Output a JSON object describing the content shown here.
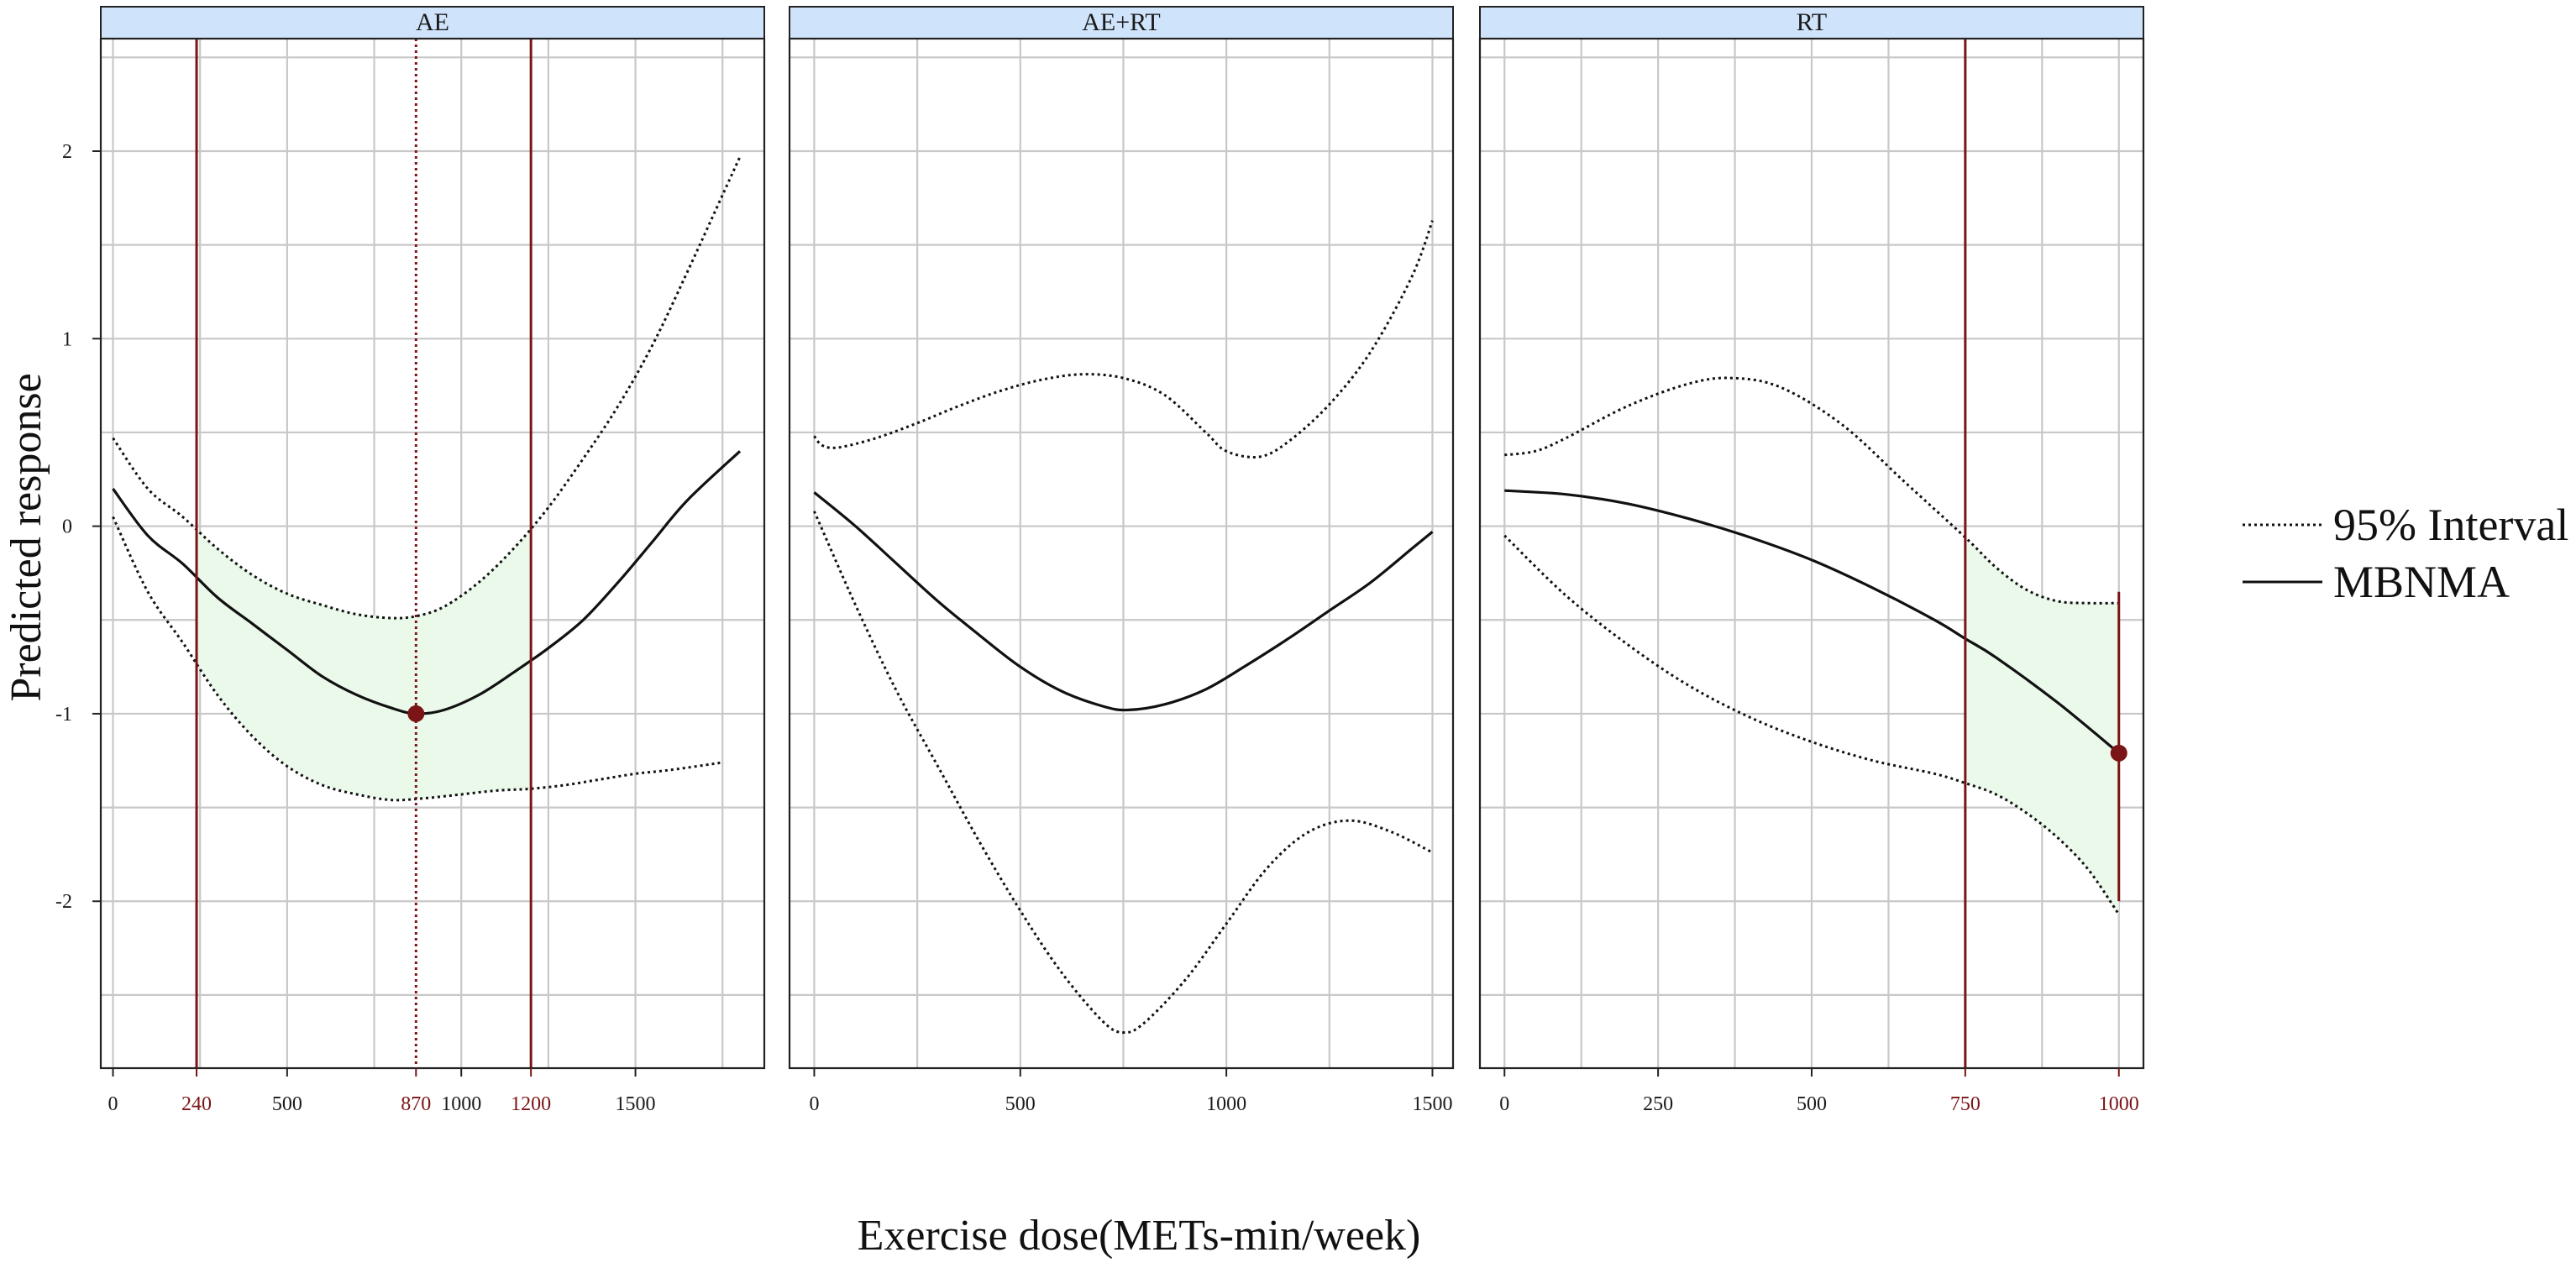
{
  "chart_data": {
    "type": "line",
    "xlabel": "Exercise dose(METs-min/week)",
    "ylabel": "Predicted response",
    "ylim": [
      -2.89,
      2.6
    ],
    "yticks": [
      2,
      1,
      0,
      -1,
      -2
    ],
    "ytick_labels": [
      "2",
      "1",
      "0",
      "-1",
      "-2"
    ],
    "grid": true,
    "legend_position": "right",
    "legend": [
      {
        "label": "95% Interval",
        "style": "dotted"
      },
      {
        "label": "MBNMA",
        "style": "solid"
      }
    ],
    "colors": {
      "line": "#111111",
      "highlight": "#7a1416",
      "fill": "#eaf9ea",
      "strip": "#cfe3fb",
      "grid": "#c8c8c8"
    },
    "panels": [
      {
        "title": "AE",
        "xlim": [
          -35,
          1870
        ],
        "xticks": [
          0,
          240,
          500,
          870,
          1000,
          1200,
          1500
        ],
        "xtick_labels": [
          "0",
          "240",
          "500",
          "870",
          "1000",
          "1200",
          "1500"
        ],
        "highlight_ticks": [
          "240",
          "870",
          "1200"
        ],
        "x_minor_grid": [
          0,
          250,
          500,
          750,
          1000,
          1250,
          1500,
          1750
        ],
        "mbnma": {
          "x": [
            0,
            100,
            200,
            300,
            400,
            500,
            600,
            700,
            800,
            870,
            950,
            1050,
            1150,
            1250,
            1350,
            1450,
            1550,
            1650,
            1800
          ],
          "y": [
            0.2,
            -0.05,
            -0.2,
            -0.38,
            -0.52,
            -0.66,
            -0.8,
            -0.9,
            -0.97,
            -1.0,
            -0.98,
            -0.9,
            -0.78,
            -0.65,
            -0.5,
            -0.3,
            -0.08,
            0.14,
            0.4
          ]
        },
        "upper": {
          "x": [
            0,
            100,
            200,
            300,
            400,
            500,
            600,
            700,
            800,
            870,
            950,
            1050,
            1150,
            1250,
            1350,
            1450,
            1550,
            1650,
            1800
          ],
          "y": [
            0.47,
            0.2,
            0.05,
            -0.12,
            -0.26,
            -0.36,
            -0.42,
            -0.47,
            -0.49,
            -0.48,
            -0.43,
            -0.3,
            -0.12,
            0.1,
            0.36,
            0.64,
            0.97,
            1.36,
            1.97
          ]
        },
        "lower": {
          "x": [
            0,
            100,
            200,
            300,
            400,
            500,
            600,
            700,
            800,
            900,
            1000,
            1100,
            1200,
            1300,
            1400,
            1500,
            1600,
            1750
          ],
          "y": [
            0.05,
            -0.35,
            -0.62,
            -0.9,
            -1.12,
            -1.28,
            -1.38,
            -1.43,
            -1.46,
            -1.45,
            -1.43,
            -1.41,
            -1.4,
            -1.38,
            -1.35,
            -1.32,
            -1.3,
            -1.26
          ]
        },
        "vlines": [
          {
            "x": 240,
            "style": "solid"
          },
          {
            "x": 870,
            "style": "dotted"
          },
          {
            "x": 1200,
            "style": "solid"
          }
        ],
        "shade": [
          240,
          1200
        ],
        "point": {
          "x": 870,
          "y": -1.0
        }
      },
      {
        "title": "AE+RT",
        "xlim": [
          -60,
          1550
        ],
        "xticks": [
          0,
          500,
          1000,
          1500
        ],
        "xtick_labels": [
          "0",
          "500",
          "1000",
          "1500"
        ],
        "highlight_ticks": [],
        "x_minor_grid": [
          0,
          250,
          500,
          750,
          1000,
          1250,
          1500
        ],
        "mbnma": {
          "x": [
            0,
            100,
            200,
            300,
            400,
            500,
            600,
            700,
            760,
            850,
            950,
            1050,
            1150,
            1250,
            1350,
            1450,
            1500
          ],
          "y": [
            0.18,
            0.0,
            -0.2,
            -0.4,
            -0.58,
            -0.75,
            -0.88,
            -0.96,
            -0.98,
            -0.95,
            -0.87,
            -0.74,
            -0.6,
            -0.45,
            -0.3,
            -0.12,
            -0.03
          ]
        },
        "upper": {
          "x": [
            0,
            20,
            60,
            150,
            250,
            350,
            450,
            550,
            650,
            750,
            850,
            950,
            1000,
            1080,
            1150,
            1250,
            1350,
            1450,
            1500
          ],
          "y": [
            0.48,
            0.43,
            0.42,
            0.47,
            0.55,
            0.64,
            0.72,
            0.78,
            0.81,
            0.79,
            0.7,
            0.5,
            0.4,
            0.37,
            0.45,
            0.65,
            0.93,
            1.33,
            1.63
          ]
        },
        "lower": {
          "x": [
            0,
            100,
            200,
            300,
            400,
            500,
            600,
            700,
            750,
            800,
            900,
            1000,
            1100,
            1200,
            1300,
            1400,
            1500
          ],
          "y": [
            0.08,
            -0.42,
            -0.88,
            -1.28,
            -1.68,
            -2.05,
            -2.38,
            -2.64,
            -2.7,
            -2.65,
            -2.42,
            -2.12,
            -1.82,
            -1.63,
            -1.57,
            -1.63,
            -1.74
          ]
        },
        "vlines": [],
        "shade": null,
        "point": null
      },
      {
        "title": "RT",
        "xlim": [
          -40,
          1040
        ],
        "xticks": [
          0,
          250,
          500,
          750,
          1000
        ],
        "xtick_labels": [
          "0",
          "250",
          "500",
          "750",
          "1000"
        ],
        "highlight_ticks": [
          "750",
          "1000"
        ],
        "x_minor_grid": [
          0,
          125,
          250,
          375,
          500,
          625,
          750,
          875,
          1000
        ],
        "mbnma": {
          "x": [
            0,
            100,
            200,
            300,
            400,
            500,
            600,
            700,
            750,
            800,
            900,
            1000
          ],
          "y": [
            0.19,
            0.17,
            0.12,
            0.04,
            -0.06,
            -0.18,
            -0.33,
            -0.5,
            -0.6,
            -0.7,
            -0.94,
            -1.21
          ]
        },
        "upper": {
          "x": [
            0,
            50,
            100,
            200,
            300,
            370,
            450,
            550,
            650,
            750,
            800,
            850,
            900,
            950,
            1000
          ],
          "y": [
            0.38,
            0.4,
            0.47,
            0.64,
            0.76,
            0.79,
            0.74,
            0.54,
            0.24,
            -0.06,
            -0.22,
            -0.34,
            -0.4,
            -0.41,
            -0.41
          ]
        },
        "lower": {
          "x": [
            0,
            100,
            200,
            300,
            400,
            500,
            600,
            700,
            750,
            800,
            850,
            900,
            950,
            1000
          ],
          "y": [
            -0.05,
            -0.37,
            -0.63,
            -0.85,
            -1.02,
            -1.15,
            -1.25,
            -1.32,
            -1.37,
            -1.43,
            -1.53,
            -1.66,
            -1.83,
            -2.07
          ]
        },
        "vlines": [
          {
            "x": 750,
            "style": "solid"
          },
          {
            "x": 1000,
            "style": "segment",
            "y": [
              -0.35,
              -2.0
            ]
          }
        ],
        "shade": [
          750,
          1000
        ],
        "point": {
          "x": 1000,
          "y": -1.21
        }
      }
    ]
  }
}
